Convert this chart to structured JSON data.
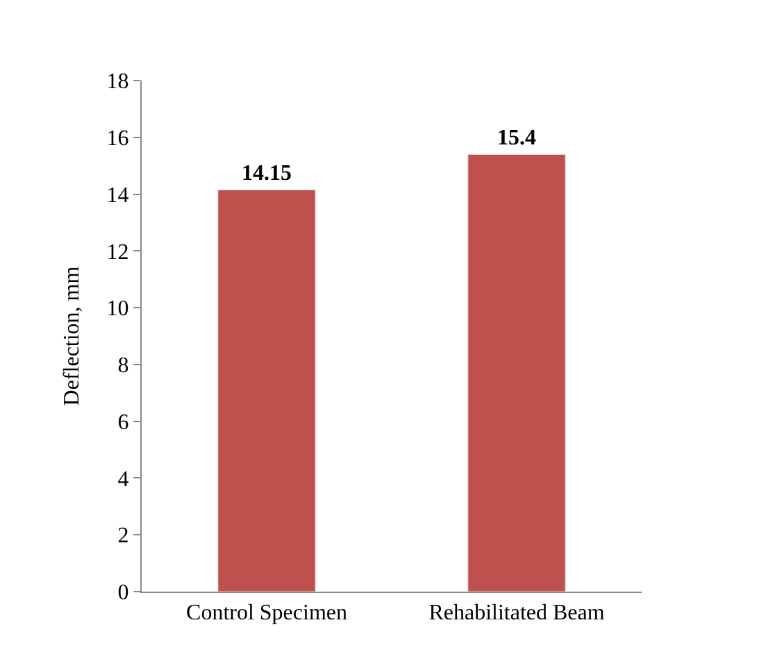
{
  "chart_data": {
    "type": "bar",
    "ylabel": "Deflection, mm",
    "categories": [
      "Control Specimen",
      "Rehabilitated Beam"
    ],
    "values": [
      14.15,
      15.4
    ],
    "color": "#c0504d",
    "ylim": [
      0,
      18
    ],
    "yticks": [
      0,
      2,
      4,
      6,
      8,
      10,
      12,
      14,
      16,
      18
    ],
    "data_labels": true,
    "legend": false
  }
}
